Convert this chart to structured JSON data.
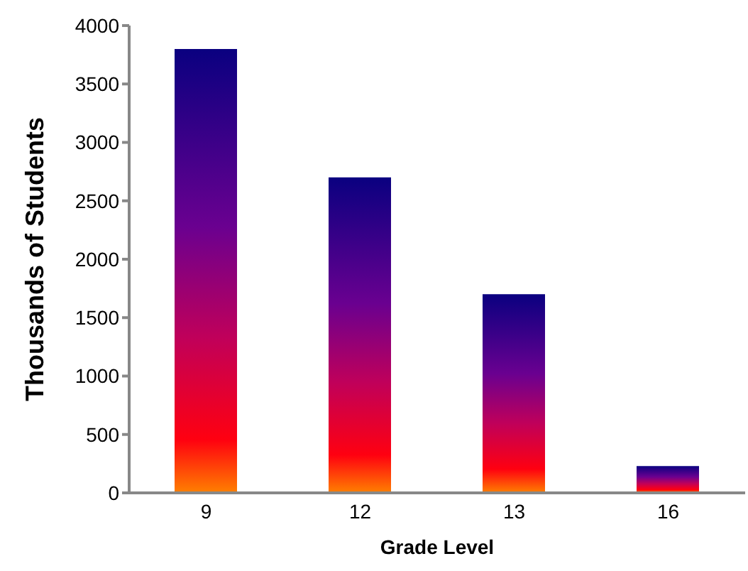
{
  "chart_data": {
    "type": "bar",
    "xlabel": "Grade Level",
    "ylabel": "Thousands of Students",
    "categories": [
      "9",
      "12",
      "13",
      "16"
    ],
    "values": [
      3800,
      2700,
      1700,
      230
    ],
    "color": "#0a0080",
    "ylim": [
      0,
      4000
    ],
    "yticks": [
      0,
      500,
      1000,
      1500,
      2000,
      2500,
      3000,
      3500,
      4000
    ],
    "grid": false
  }
}
